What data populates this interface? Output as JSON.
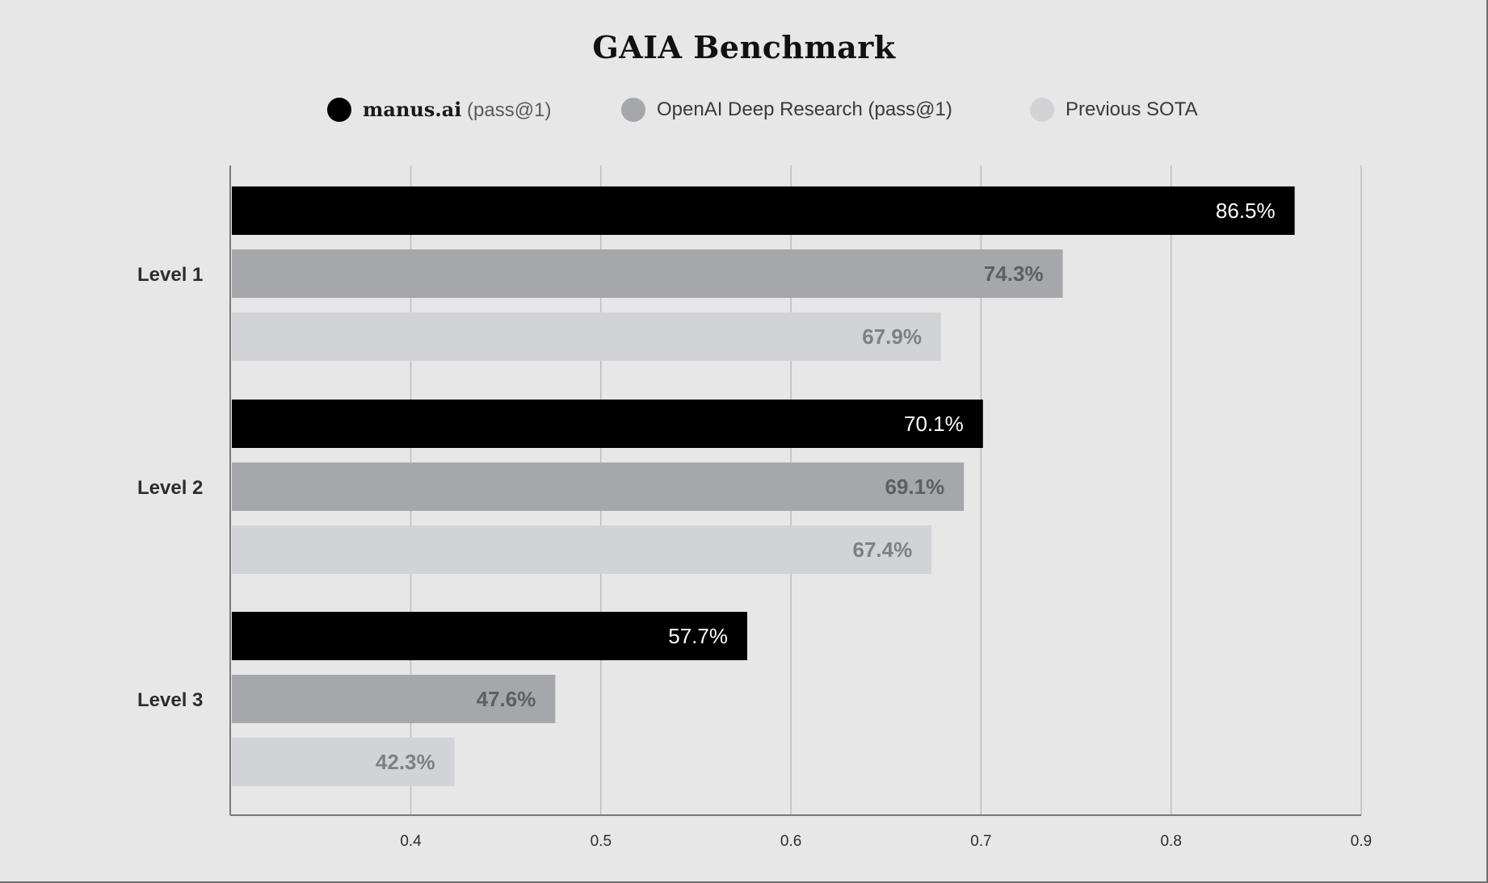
{
  "chart_data": {
    "type": "bar",
    "orientation": "horizontal",
    "title": "GAIA Benchmark",
    "categories": [
      "Level 1",
      "Level 2",
      "Level 3"
    ],
    "series": [
      {
        "name": "manus.ai (pass@1)",
        "name_parts": [
          "manus.ai",
          " (pass@1)"
        ],
        "color": "#000000",
        "label_color": "#ffffff",
        "values": [
          0.865,
          0.701,
          0.577
        ],
        "labels": [
          "86.5%",
          "70.1%",
          "57.7%"
        ]
      },
      {
        "name": "OpenAI Deep Research (pass@1)",
        "color": "#a6a7ab",
        "label_color": "#5e5f63",
        "values": [
          0.743,
          0.691,
          0.476
        ],
        "labels": [
          "74.3%",
          "69.1%",
          "47.6%"
        ]
      },
      {
        "name": "Previous SOTA",
        "color": "#d2d3d6",
        "label_color": "#7f8085",
        "values": [
          0.679,
          0.674,
          0.423
        ],
        "labels": [
          "67.9%",
          "67.4%",
          "42.3%"
        ]
      }
    ],
    "xlim": [
      0.305,
      0.9
    ],
    "xticks": [
      0.4,
      0.5,
      0.6,
      0.7,
      0.8,
      0.9
    ],
    "xtick_labels": [
      "0.4",
      "0.5",
      "0.6",
      "0.7",
      "0.8",
      "0.9"
    ],
    "grid": true,
    "legend_position": "top-center",
    "xlabel": "",
    "ylabel": ""
  },
  "colors": {
    "background": "#e7e7e7",
    "grid": "#bdbdbd",
    "axis": "#7a7a7a"
  }
}
